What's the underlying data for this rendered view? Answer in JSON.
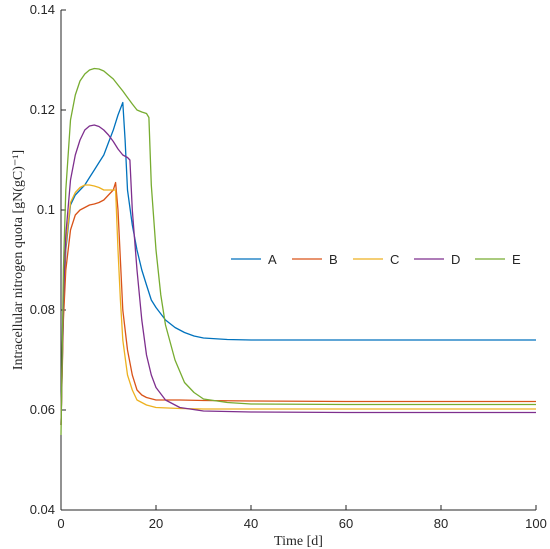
{
  "chart_data": {
    "type": "line",
    "xlabel": "Time [d]",
    "ylabel": "Intracellular nitrogen quota [gN(gC)⁻¹]",
    "xlim": [
      0,
      100
    ],
    "ylim": [
      0.04,
      0.14
    ],
    "xticks": [
      0,
      20,
      40,
      60,
      80,
      100
    ],
    "yticks": [
      0.04,
      0.06,
      0.08,
      0.1,
      0.12,
      0.14
    ],
    "ytick_labels": [
      "0.04",
      "0.06",
      "0.08",
      "0.1",
      "0.12",
      "0.14"
    ],
    "grid": false,
    "legend": "right-middle, single row",
    "series": [
      {
        "name": "A",
        "color": "#0072BD",
        "x": [
          0,
          0.5,
          1,
          2,
          3,
          4,
          5,
          6,
          7,
          8,
          9,
          10,
          11,
          12,
          13,
          13.5,
          14,
          15,
          16,
          17,
          18,
          19,
          20,
          22,
          24,
          26,
          28,
          30,
          35,
          40,
          50,
          60,
          80,
          100
        ],
        "y": [
          0.057,
          0.08,
          0.092,
          0.101,
          0.103,
          0.104,
          0.105,
          0.1065,
          0.108,
          0.1095,
          0.111,
          0.1135,
          0.116,
          0.119,
          0.1215,
          0.114,
          0.104,
          0.097,
          0.092,
          0.088,
          0.085,
          0.082,
          0.0805,
          0.078,
          0.0765,
          0.0755,
          0.0748,
          0.0744,
          0.0741,
          0.074,
          0.074,
          0.074,
          0.074,
          0.074
        ]
      },
      {
        "name": "B",
        "color": "#D95319",
        "x": [
          0,
          0.5,
          1,
          2,
          3,
          4,
          5,
          6,
          7,
          8,
          9,
          10,
          11,
          11.5,
          12,
          12.5,
          13,
          14,
          15,
          16,
          17,
          18,
          20,
          22,
          25,
          30,
          40,
          60,
          80,
          100
        ],
        "y": [
          0.057,
          0.078,
          0.088,
          0.096,
          0.099,
          0.1,
          0.1005,
          0.101,
          0.1012,
          0.1015,
          0.102,
          0.103,
          0.104,
          0.1055,
          0.1,
          0.09,
          0.08,
          0.072,
          0.067,
          0.064,
          0.063,
          0.0625,
          0.062,
          0.062,
          0.062,
          0.0619,
          0.0618,
          0.0617,
          0.0617,
          0.0617
        ]
      },
      {
        "name": "C",
        "color": "#EDB120",
        "x": [
          0,
          0.5,
          1,
          2,
          3,
          4,
          5,
          6,
          7,
          8,
          9,
          10,
          11,
          11.5,
          12,
          12.5,
          13,
          14,
          15,
          16,
          18,
          20,
          25,
          30,
          40,
          60,
          80,
          100
        ],
        "y": [
          0.057,
          0.082,
          0.093,
          0.1015,
          0.1035,
          0.1045,
          0.105,
          0.105,
          0.1048,
          0.1045,
          0.104,
          0.104,
          0.104,
          0.104,
          0.092,
          0.082,
          0.074,
          0.067,
          0.064,
          0.062,
          0.061,
          0.0605,
          0.0603,
          0.0602,
          0.0602,
          0.0602,
          0.0602,
          0.0602
        ]
      },
      {
        "name": "D",
        "color": "#7E2F8E",
        "x": [
          0,
          0.5,
          1,
          2,
          3,
          4,
          5,
          6,
          7,
          8,
          9,
          10,
          11,
          12,
          13,
          14,
          14.5,
          15,
          16,
          17,
          18,
          19,
          20,
          22,
          25,
          30,
          40,
          60,
          80,
          100
        ],
        "y": [
          0.057,
          0.082,
          0.095,
          0.106,
          0.111,
          0.114,
          0.116,
          0.1168,
          0.117,
          0.1167,
          0.116,
          0.115,
          0.1137,
          0.1122,
          0.111,
          0.1105,
          0.11,
          0.1,
          0.088,
          0.078,
          0.071,
          0.067,
          0.0645,
          0.062,
          0.0605,
          0.0598,
          0.0596,
          0.0595,
          0.0595,
          0.0595
        ]
      },
      {
        "name": "E",
        "color": "#77AC30",
        "x": [
          0,
          0.5,
          1,
          2,
          3,
          4,
          5,
          6,
          7,
          8,
          9,
          10,
          11,
          12,
          13,
          14,
          15,
          16,
          17,
          18,
          18.5,
          19,
          20,
          21,
          22,
          24,
          26,
          28,
          30,
          35,
          40,
          60,
          80,
          100
        ],
        "y": [
          0.055,
          0.088,
          0.104,
          0.118,
          0.123,
          0.1258,
          0.1272,
          0.128,
          0.1283,
          0.1282,
          0.1278,
          0.127,
          0.1262,
          0.125,
          0.1238,
          0.1225,
          0.1212,
          0.12,
          0.1196,
          0.1193,
          0.1185,
          0.105,
          0.092,
          0.083,
          0.077,
          0.07,
          0.0655,
          0.0635,
          0.0622,
          0.0615,
          0.0612,
          0.0611,
          0.0611,
          0.0611
        ]
      }
    ]
  }
}
